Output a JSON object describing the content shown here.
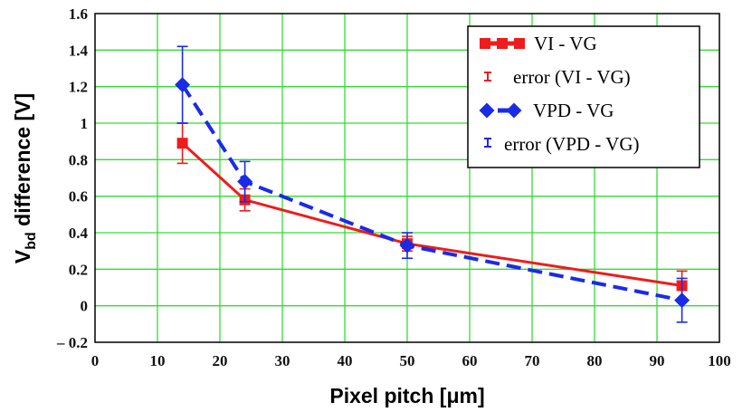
{
  "chart_data": {
    "type": "line",
    "title": "",
    "xlabel": "Pixel pitch [μm]",
    "ylabel_main": "V",
    "ylabel_sub": "bd",
    "ylabel_rest": " difference [V]",
    "xlim": [
      0,
      100
    ],
    "ylim": [
      -0.2,
      1.6
    ],
    "xticks": [
      0,
      10,
      20,
      30,
      40,
      50,
      60,
      70,
      80,
      90,
      100
    ],
    "xtick_labels": [
      "0",
      "10",
      "20",
      "30",
      "40",
      "50",
      "60",
      "70",
      "80",
      "90",
      "100"
    ],
    "yticks": [
      -0.2,
      0,
      0.2,
      0.4,
      0.6,
      0.8,
      1,
      1.2,
      1.4,
      1.6
    ],
    "ytick_labels": [
      "– 0.2",
      "0",
      "0.2",
      "0.4",
      "0.6",
      "0.8",
      "1",
      "1.2",
      "1.4",
      "1.6"
    ],
    "grid": true,
    "legend_position": "top-right",
    "series": [
      {
        "name": "VI - VG",
        "error_name": "error (VI - VG)",
        "color": "#ee1c1c",
        "dash": "solid",
        "marker": "square",
        "x": [
          14,
          24,
          50,
          94
        ],
        "values": [
          0.89,
          0.58,
          0.34,
          0.11
        ],
        "errors": [
          0.11,
          0.06,
          0.04,
          0.08
        ]
      },
      {
        "name": "VPD - VG",
        "error_name": "error (VPD - VG)",
        "color": "#1a2be8",
        "dash": "dashed",
        "marker": "diamond",
        "x": [
          14,
          24,
          50,
          94
        ],
        "values": [
          1.21,
          0.68,
          0.33,
          0.03
        ],
        "errors": [
          0.21,
          0.11,
          0.07,
          0.12
        ]
      }
    ]
  },
  "colors": {
    "grid": "#33dd33",
    "frame": "#000000"
  }
}
